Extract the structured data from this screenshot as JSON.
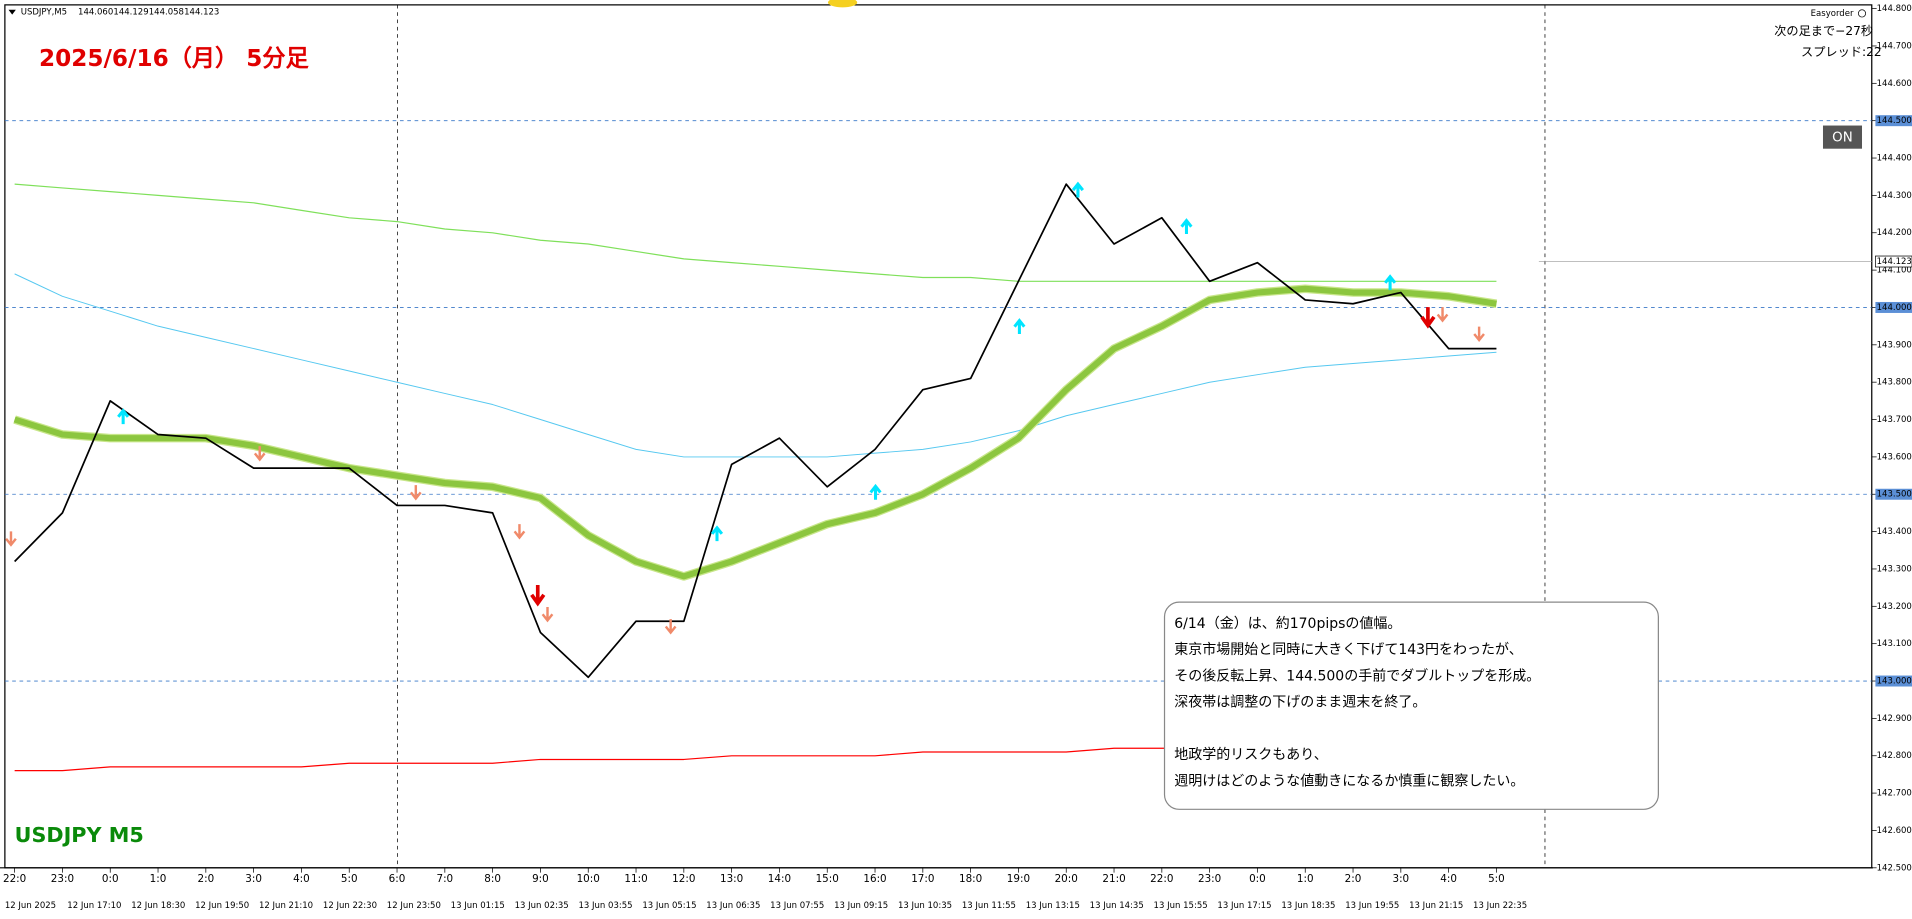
{
  "chart_data": {
    "type": "line",
    "header": {
      "symbol": "USDJPY,M5",
      "ohlc": [
        "144.060",
        "144.129",
        "144.058",
        "144.123"
      ]
    },
    "title": "2025/6/16（月） 5分足",
    "subtitle": "USDJPY M5",
    "panel": {
      "label": "Easyorder",
      "lines": [
        "次の足まで−27秒",
        "スプレッド:22"
      ],
      "button": "ON"
    },
    "annotations": [
      "6/14（金）は、約170pipsの値幅。",
      "東京市場開始と同時に大きく下げて143円をわったが、",
      "その後反転上昇、144.500の手前でダブルトップを形成。",
      "深夜帯は調整の下げのまま週末を終了。",
      "地政学的リスクもあり、",
      "週明けはどのような値動きになるか慎重に観察したい。"
    ],
    "categories": [
      "22:0",
      "23:0",
      "0:0",
      "1:0",
      "2:0",
      "3:0",
      "4:0",
      "5:0",
      "6:0",
      "7:0",
      "8:0",
      "9:0",
      "10:0",
      "11:0",
      "12:0",
      "13:0",
      "14:0",
      "15:0",
      "16:0",
      "17:0",
      "18:0",
      "19:0",
      "20:0",
      "21:0",
      "22:0",
      "23:0",
      "0:0",
      "1:0",
      "2:0",
      "3:0",
      "4:0",
      "5:0"
    ],
    "date_labels": [
      "12 Jun 2025",
      "12 Jun 17:10",
      "12 Jun 18:30",
      "12 Jun 19:50",
      "12 Jun 21:10",
      "12 Jun 22:30",
      "12 Jun 23:50",
      "13 Jun 01:15",
      "13 Jun 02:35",
      "13 Jun 03:55",
      "13 Jun 05:15",
      "13 Jun 06:35",
      "13 Jun 07:55",
      "13 Jun 09:15",
      "13 Jun 10:35",
      "13 Jun 11:55",
      "13 Jun 13:15",
      "13 Jun 14:35",
      "13 Jun 15:55",
      "13 Jun 17:15",
      "13 Jun 18:35",
      "13 Jun 19:55",
      "13 Jun 21:15",
      "13 Jun 22:35"
    ],
    "series": [
      {
        "color": "#ff0000",
        "values": [
          142.76,
          142.76,
          142.77,
          142.77,
          142.77,
          142.77,
          142.77,
          142.78,
          142.78,
          142.78,
          142.78,
          142.79,
          142.79,
          142.79,
          142.79,
          142.8,
          142.8,
          142.8,
          142.8,
          142.81,
          142.81,
          142.81,
          142.81,
          142.82,
          142.82,
          142.82,
          142.82,
          142.83,
          142.83,
          142.83,
          142.83,
          142.84
        ]
      },
      {
        "color": "#7fe05a",
        "values": [
          144.33,
          144.32,
          144.31,
          144.3,
          144.29,
          144.28,
          144.26,
          144.24,
          144.23,
          144.21,
          144.2,
          144.18,
          144.17,
          144.15,
          144.13,
          144.12,
          144.11,
          144.1,
          144.09,
          144.08,
          144.08,
          144.07,
          144.07,
          144.07,
          144.07,
          144.07,
          144.07,
          144.07,
          144.07,
          144.07,
          144.07,
          144.07
        ]
      },
      {
        "color": "#56c8f0",
        "values": [
          144.09,
          144.03,
          143.99,
          143.95,
          143.92,
          143.89,
          143.86,
          143.83,
          143.8,
          143.77,
          143.74,
          143.7,
          143.66,
          143.62,
          143.6,
          143.6,
          143.6,
          143.6,
          143.61,
          143.62,
          143.64,
          143.67,
          143.71,
          143.74,
          143.77,
          143.8,
          143.82,
          143.84,
          143.85,
          143.86,
          143.87,
          143.88
        ]
      },
      {
        "color": "#8cc63f",
        "values": [
          143.7,
          143.66,
          143.65,
          143.65,
          143.65,
          143.63,
          143.6,
          143.57,
          143.55,
          143.53,
          143.52,
          143.49,
          143.39,
          143.32,
          143.28,
          143.32,
          143.37,
          143.42,
          143.45,
          143.5,
          143.57,
          143.65,
          143.78,
          143.89,
          143.95,
          144.02,
          144.04,
          144.05,
          144.04,
          144.04,
          144.03,
          144.01
        ]
      },
      {
        "color": "#000000",
        "values": [
          143.32,
          143.45,
          143.75,
          143.66,
          143.65,
          143.57,
          143.57,
          143.57,
          143.47,
          143.47,
          143.45,
          143.13,
          143.01,
          143.16,
          143.16,
          143.58,
          143.65,
          143.52,
          143.62,
          143.78,
          143.81,
          144.07,
          144.33,
          144.17,
          144.24,
          144.07,
          144.12,
          144.02,
          144.01,
          144.04,
          143.89,
          143.89
        ]
      }
    ],
    "ylim": [
      142.5,
      144.81
    ],
    "yticks": [
      {
        "value": 142.5,
        "label": "142.500"
      },
      {
        "value": 142.6,
        "label": "142.600"
      },
      {
        "value": 142.7,
        "label": "142.700"
      },
      {
        "value": 142.8,
        "label": "142.800"
      },
      {
        "value": 142.9,
        "label": "142.900"
      },
      {
        "value": 143.0,
        "label": "143.000"
      },
      {
        "value": 143.1,
        "label": "143.100"
      },
      {
        "value": 143.2,
        "label": "143.200"
      },
      {
        "value": 143.3,
        "label": "143.300"
      },
      {
        "value": 143.4,
        "label": "143.400"
      },
      {
        "value": 143.5,
        "label": "143.500"
      },
      {
        "value": 143.6,
        "label": "143.600"
      },
      {
        "value": 143.7,
        "label": "143.700"
      },
      {
        "value": 143.8,
        "label": "143.800"
      },
      {
        "value": 143.9,
        "label": "143.900"
      },
      {
        "value": 144.0,
        "label": "144.000"
      },
      {
        "value": 144.1,
        "label": "144.100"
      },
      {
        "value": 144.2,
        "label": "144.200"
      },
      {
        "value": 144.3,
        "label": "144.300"
      },
      {
        "value": 144.4,
        "label": "144.400"
      },
      {
        "value": 144.5,
        "label": "144.500"
      },
      {
        "value": 144.6,
        "label": "144.600"
      },
      {
        "value": 144.7,
        "label": "144.700"
      },
      {
        "value": 144.8,
        "label": "144.800"
      }
    ],
    "hlines": [
      144.5,
      144.0,
      143.5,
      143.0
    ],
    "current": {
      "value": 144.123,
      "label": "144.123"
    }
  }
}
